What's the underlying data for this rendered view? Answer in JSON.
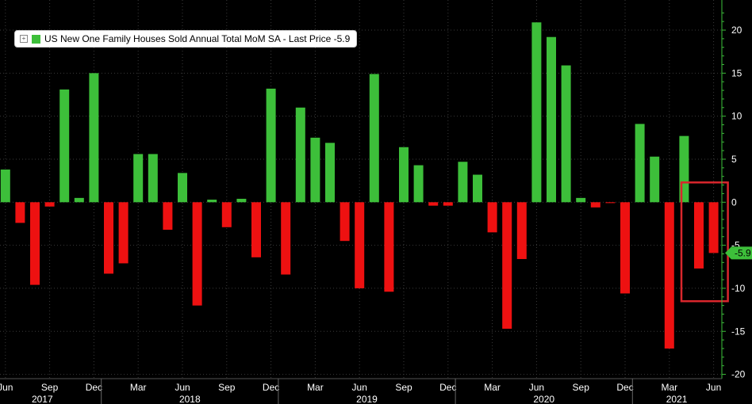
{
  "chart_data": {
    "type": "bar",
    "legend": {
      "label": "US New One Family Houses Sold Annual Total MoM SA - Last Price -5.9",
      "placement": "top-left"
    },
    "last_price_label": "-5.9",
    "last_price": -5.9,
    "colors": {
      "positive": "#3dbf3a",
      "negative": "#ee1111",
      "highlight_box": "#d9262c",
      "background": "#000000",
      "axis": "#3dbf3a"
    },
    "ylim": [
      -20.5,
      23.5
    ],
    "yticks": [
      -20,
      -15,
      -10,
      -5,
      0,
      5,
      10,
      15,
      20
    ],
    "ytick_labels": [
      "-20",
      "-15",
      "-10",
      "-5",
      "0",
      "5",
      "10",
      "15",
      "20"
    ],
    "grid": true,
    "x_labels": [
      {
        "index": 0,
        "text": "Jun"
      },
      {
        "index": 3,
        "text": "Sep"
      },
      {
        "index": 6,
        "text": "Dec"
      },
      {
        "index": 9,
        "text": "Mar"
      },
      {
        "index": 12,
        "text": "Jun"
      },
      {
        "index": 15,
        "text": "Sep"
      },
      {
        "index": 18,
        "text": "Dec"
      },
      {
        "index": 21,
        "text": "Mar"
      },
      {
        "index": 24,
        "text": "Jun"
      },
      {
        "index": 27,
        "text": "Sep"
      },
      {
        "index": 30,
        "text": "Dec"
      },
      {
        "index": 33,
        "text": "Mar"
      },
      {
        "index": 36,
        "text": "Jun"
      },
      {
        "index": 39,
        "text": "Sep"
      },
      {
        "index": 42,
        "text": "Dec"
      },
      {
        "index": 45,
        "text": "Mar"
      },
      {
        "index": 48,
        "text": "Jun"
      }
    ],
    "year_labels": [
      {
        "index": 2.5,
        "text": "2017"
      },
      {
        "index": 12.5,
        "text": "2018"
      },
      {
        "index": 24.5,
        "text": "2019"
      },
      {
        "index": 36.5,
        "text": "2020"
      },
      {
        "index": 45.5,
        "text": "2021"
      }
    ],
    "year_separators": [
      6.5,
      18.5,
      30.5,
      42.5
    ],
    "values": [
      3.8,
      -2.4,
      -9.6,
      -0.5,
      13.1,
      0.5,
      15.0,
      -8.3,
      -7.1,
      5.6,
      5.6,
      -3.2,
      3.4,
      -12.0,
      0.3,
      -2.9,
      0.4,
      -6.4,
      13.2,
      -8.4,
      11.0,
      7.5,
      6.9,
      -4.5,
      -10.0,
      14.9,
      -10.4,
      6.4,
      4.3,
      -0.4,
      -0.4,
      4.7,
      3.2,
      -3.5,
      -14.7,
      -6.6,
      20.9,
      19.2,
      15.9,
      0.5,
      -0.6,
      -0.1,
      -10.6,
      9.1,
      5.3,
      -17.0,
      7.7,
      -7.7,
      -5.9
    ],
    "highlighted_range": [
      47,
      48
    ]
  }
}
